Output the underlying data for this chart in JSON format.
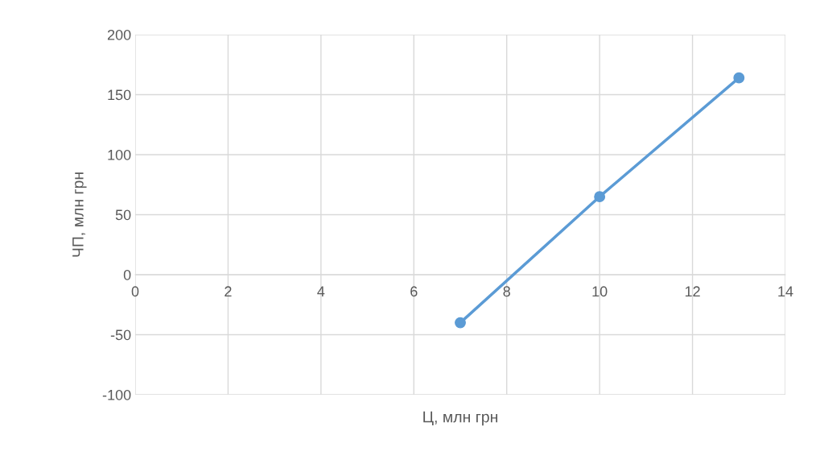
{
  "chart_data": {
    "type": "line",
    "xlabel": "Ц, млн грн",
    "ylabel": "ЧП, млн грн",
    "x": [
      7,
      10,
      13
    ],
    "series": [
      {
        "color": "#5b9bd5",
        "values": [
          -40,
          65,
          164
        ]
      }
    ],
    "xlim": [
      0,
      14
    ],
    "xticks": [
      0,
      2,
      4,
      6,
      8,
      10,
      12,
      14
    ],
    "ylim": [
      -100,
      200
    ],
    "yticks": [
      -100,
      -50,
      0,
      50,
      100,
      150,
      200
    ],
    "grid": true,
    "marker": "circle",
    "line_style": "solid"
  }
}
